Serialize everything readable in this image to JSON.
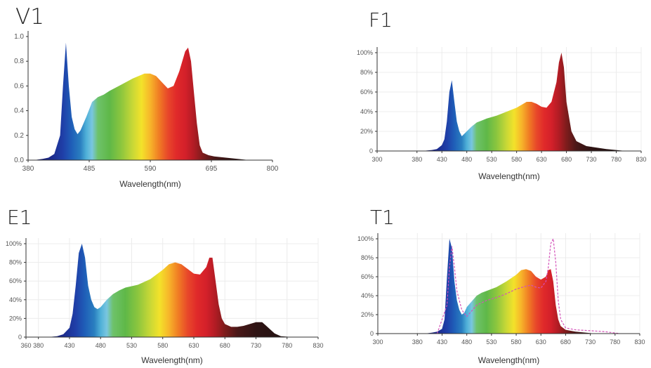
{
  "colors": {
    "text": "#222222",
    "curve_dashed": "#d452b9"
  },
  "chart_data": [
    {
      "id": "V1",
      "type": "area",
      "title": "V1",
      "xlabel": "Wavelength(nm)",
      "ylabel": "",
      "xlim": [
        380,
        800
      ],
      "ylim": [
        0,
        1.0
      ],
      "xticks": [
        380,
        485,
        590,
        695,
        800
      ],
      "yticks": [
        0.0,
        0.2,
        0.4,
        0.6,
        0.8,
        1.0
      ],
      "ytick_labels": [
        "0.0",
        "0.2",
        "0.4",
        "0.6",
        "0.8",
        "1.0"
      ],
      "x": [
        390,
        405,
        415,
        425,
        435,
        440,
        445,
        450,
        455,
        460,
        465,
        470,
        480,
        490,
        500,
        510,
        520,
        540,
        560,
        580,
        590,
        600,
        610,
        620,
        630,
        640,
        650,
        655,
        660,
        665,
        670,
        675,
        680,
        690,
        700,
        720,
        740,
        760
      ],
      "y": [
        0.0,
        0.01,
        0.02,
        0.05,
        0.2,
        0.6,
        0.95,
        0.6,
        0.35,
        0.25,
        0.21,
        0.24,
        0.35,
        0.47,
        0.51,
        0.53,
        0.56,
        0.61,
        0.66,
        0.7,
        0.7,
        0.68,
        0.63,
        0.58,
        0.6,
        0.72,
        0.88,
        0.91,
        0.8,
        0.55,
        0.3,
        0.12,
        0.06,
        0.04,
        0.03,
        0.02,
        0.01,
        0.0
      ]
    },
    {
      "id": "F1",
      "type": "area",
      "title": "F1",
      "xlabel": "Wavelength(nm)",
      "ylabel": "",
      "xlim": [
        300,
        830
      ],
      "ylim": [
        0,
        100
      ],
      "xticks": [
        300,
        380,
        430,
        480,
        530,
        580,
        630,
        680,
        730,
        780,
        830
      ],
      "xtick_labels": [
        "300",
        "380",
        "430",
        "480",
        "530",
        "580",
        "630",
        "680",
        "730",
        "780",
        "830"
      ],
      "yticks": [
        0,
        20,
        40,
        60,
        80,
        100
      ],
      "ytick_labels": [
        "0",
        "20%",
        "40%",
        "60%",
        "80%",
        "100%"
      ],
      "x": [
        390,
        410,
        420,
        430,
        435,
        440,
        445,
        450,
        455,
        460,
        465,
        470,
        480,
        490,
        500,
        510,
        520,
        540,
        560,
        580,
        590,
        600,
        610,
        620,
        630,
        640,
        650,
        660,
        665,
        670,
        675,
        680,
        690,
        700,
        720,
        760,
        800
      ],
      "y": [
        0,
        1,
        2,
        6,
        12,
        30,
        60,
        72,
        50,
        30,
        20,
        15,
        20,
        25,
        29,
        31,
        33,
        36,
        40,
        44,
        47,
        50,
        50,
        48,
        45,
        44,
        50,
        70,
        90,
        100,
        85,
        50,
        20,
        10,
        5,
        2,
        0
      ]
    },
    {
      "id": "E1",
      "type": "area",
      "title": "E1",
      "xlabel": "Wavelength(nm)",
      "ylabel": "",
      "xlim": [
        360,
        830
      ],
      "ylim": [
        0,
        100
      ],
      "xticks": [
        360,
        380,
        430,
        480,
        530,
        580,
        630,
        680,
        730,
        780,
        830
      ],
      "xtick_labels": [
        "360",
        "380",
        "430",
        "480",
        "530",
        "580",
        "630",
        "680",
        "730",
        "780",
        "830"
      ],
      "yticks": [
        0,
        20,
        40,
        60,
        80,
        100
      ],
      "ytick_labels": [
        "0",
        "20%",
        "40%",
        "60%",
        "80%",
        "100%"
      ],
      "x": [
        395,
        410,
        420,
        430,
        435,
        440,
        445,
        450,
        455,
        460,
        465,
        470,
        475,
        480,
        490,
        500,
        510,
        520,
        540,
        560,
        580,
        590,
        600,
        610,
        620,
        630,
        640,
        650,
        655,
        660,
        665,
        670,
        675,
        680,
        690,
        700,
        710,
        720,
        730,
        740,
        750,
        760,
        770,
        790
      ],
      "y": [
        0,
        1,
        3,
        10,
        25,
        55,
        90,
        100,
        85,
        55,
        40,
        32,
        30,
        32,
        40,
        46,
        50,
        53,
        56,
        62,
        72,
        78,
        80,
        78,
        73,
        68,
        67,
        75,
        85,
        85,
        60,
        35,
        20,
        14,
        11,
        11,
        12,
        14,
        16,
        16,
        10,
        4,
        1,
        0
      ]
    },
    {
      "id": "T1",
      "type": "area",
      "title": "T1",
      "xlabel": "Wavelength(nm)",
      "ylabel": "",
      "xlim": [
        300,
        830
      ],
      "ylim": [
        0,
        100
      ],
      "xticks": [
        300,
        380,
        430,
        480,
        530,
        580,
        630,
        680,
        730,
        780,
        830
      ],
      "xtick_labels": [
        "300",
        "380",
        "430",
        "480",
        "530",
        "580",
        "630",
        "680",
        "730",
        "780",
        "830"
      ],
      "yticks": [
        0,
        20,
        40,
        60,
        80,
        100
      ],
      "ytick_labels": [
        "0",
        "20%",
        "40%",
        "60%",
        "80%",
        "100%"
      ],
      "x": [
        395,
        410,
        420,
        430,
        435,
        440,
        445,
        450,
        455,
        460,
        465,
        470,
        475,
        480,
        490,
        500,
        510,
        520,
        540,
        560,
        580,
        590,
        600,
        610,
        620,
        630,
        640,
        645,
        650,
        655,
        660,
        665,
        670,
        680,
        700,
        720,
        740,
        780
      ],
      "y": [
        0,
        1,
        2,
        5,
        15,
        60,
        100,
        90,
        55,
        35,
        25,
        20,
        22,
        28,
        34,
        40,
        43,
        45,
        49,
        55,
        62,
        67,
        68,
        66,
        60,
        57,
        60,
        67,
        68,
        55,
        30,
        15,
        8,
        4,
        2,
        1,
        0,
        0
      ],
      "dashed_series": {
        "x": [
          420,
          440,
          445,
          450,
          455,
          460,
          470,
          480,
          500,
          520,
          540,
          560,
          580,
          600,
          610,
          620,
          630,
          640,
          645,
          650,
          655,
          660,
          665,
          670,
          680,
          700,
          730,
          760,
          790
        ],
        "y": [
          0,
          30,
          70,
          92,
          70,
          45,
          25,
          18,
          30,
          35,
          38,
          42,
          47,
          50,
          51,
          49,
          48,
          55,
          70,
          95,
          100,
          75,
          35,
          15,
          6,
          4,
          3,
          2,
          0
        ]
      }
    }
  ]
}
